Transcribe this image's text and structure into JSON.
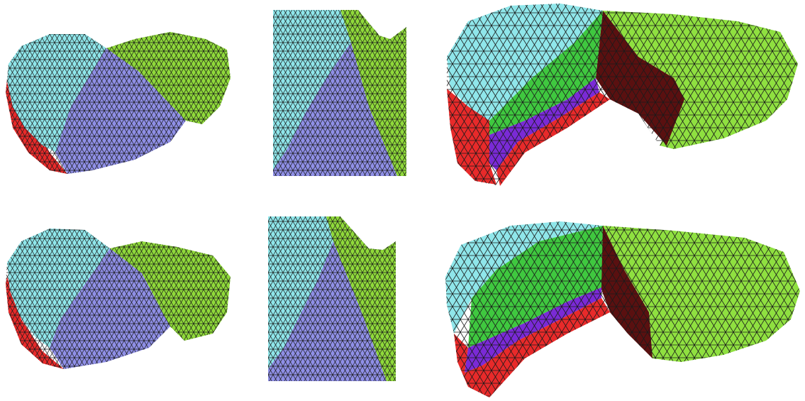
{
  "figure": {
    "rows": [
      {
        "name": "top-row",
        "panels": [
          {
            "name": "mesh-full-view",
            "regions": [
              "cyan",
              "blue",
              "green",
              "red"
            ]
          },
          {
            "name": "mesh-zoom-view",
            "regions": [
              "cyan",
              "blue",
              "green"
            ]
          },
          {
            "name": "mesh-cut-view",
            "regions": [
              "cyan",
              "green",
              "dark-red",
              "purple",
              "red",
              "light-green"
            ]
          }
        ]
      },
      {
        "name": "bottom-row",
        "panels": [
          {
            "name": "mesh-full-view",
            "regions": [
              "cyan",
              "blue",
              "green",
              "red"
            ]
          },
          {
            "name": "mesh-zoom-view",
            "regions": [
              "cyan",
              "blue",
              "green"
            ]
          },
          {
            "name": "mesh-cut-view",
            "regions": [
              "cyan",
              "green",
              "dark-red",
              "purple",
              "red",
              "light-green"
            ]
          }
        ]
      }
    ],
    "colors": {
      "cyan": "#8fe6ea",
      "blue": "#8f8fe6",
      "green": "#8fd93a",
      "bright_green": "#3fc83f",
      "red": "#e82a2a",
      "dark_red": "#5a1010",
      "purple": "#7a2ad6",
      "light_green": "#8fe040",
      "edge": "#1a1a1a"
    }
  }
}
